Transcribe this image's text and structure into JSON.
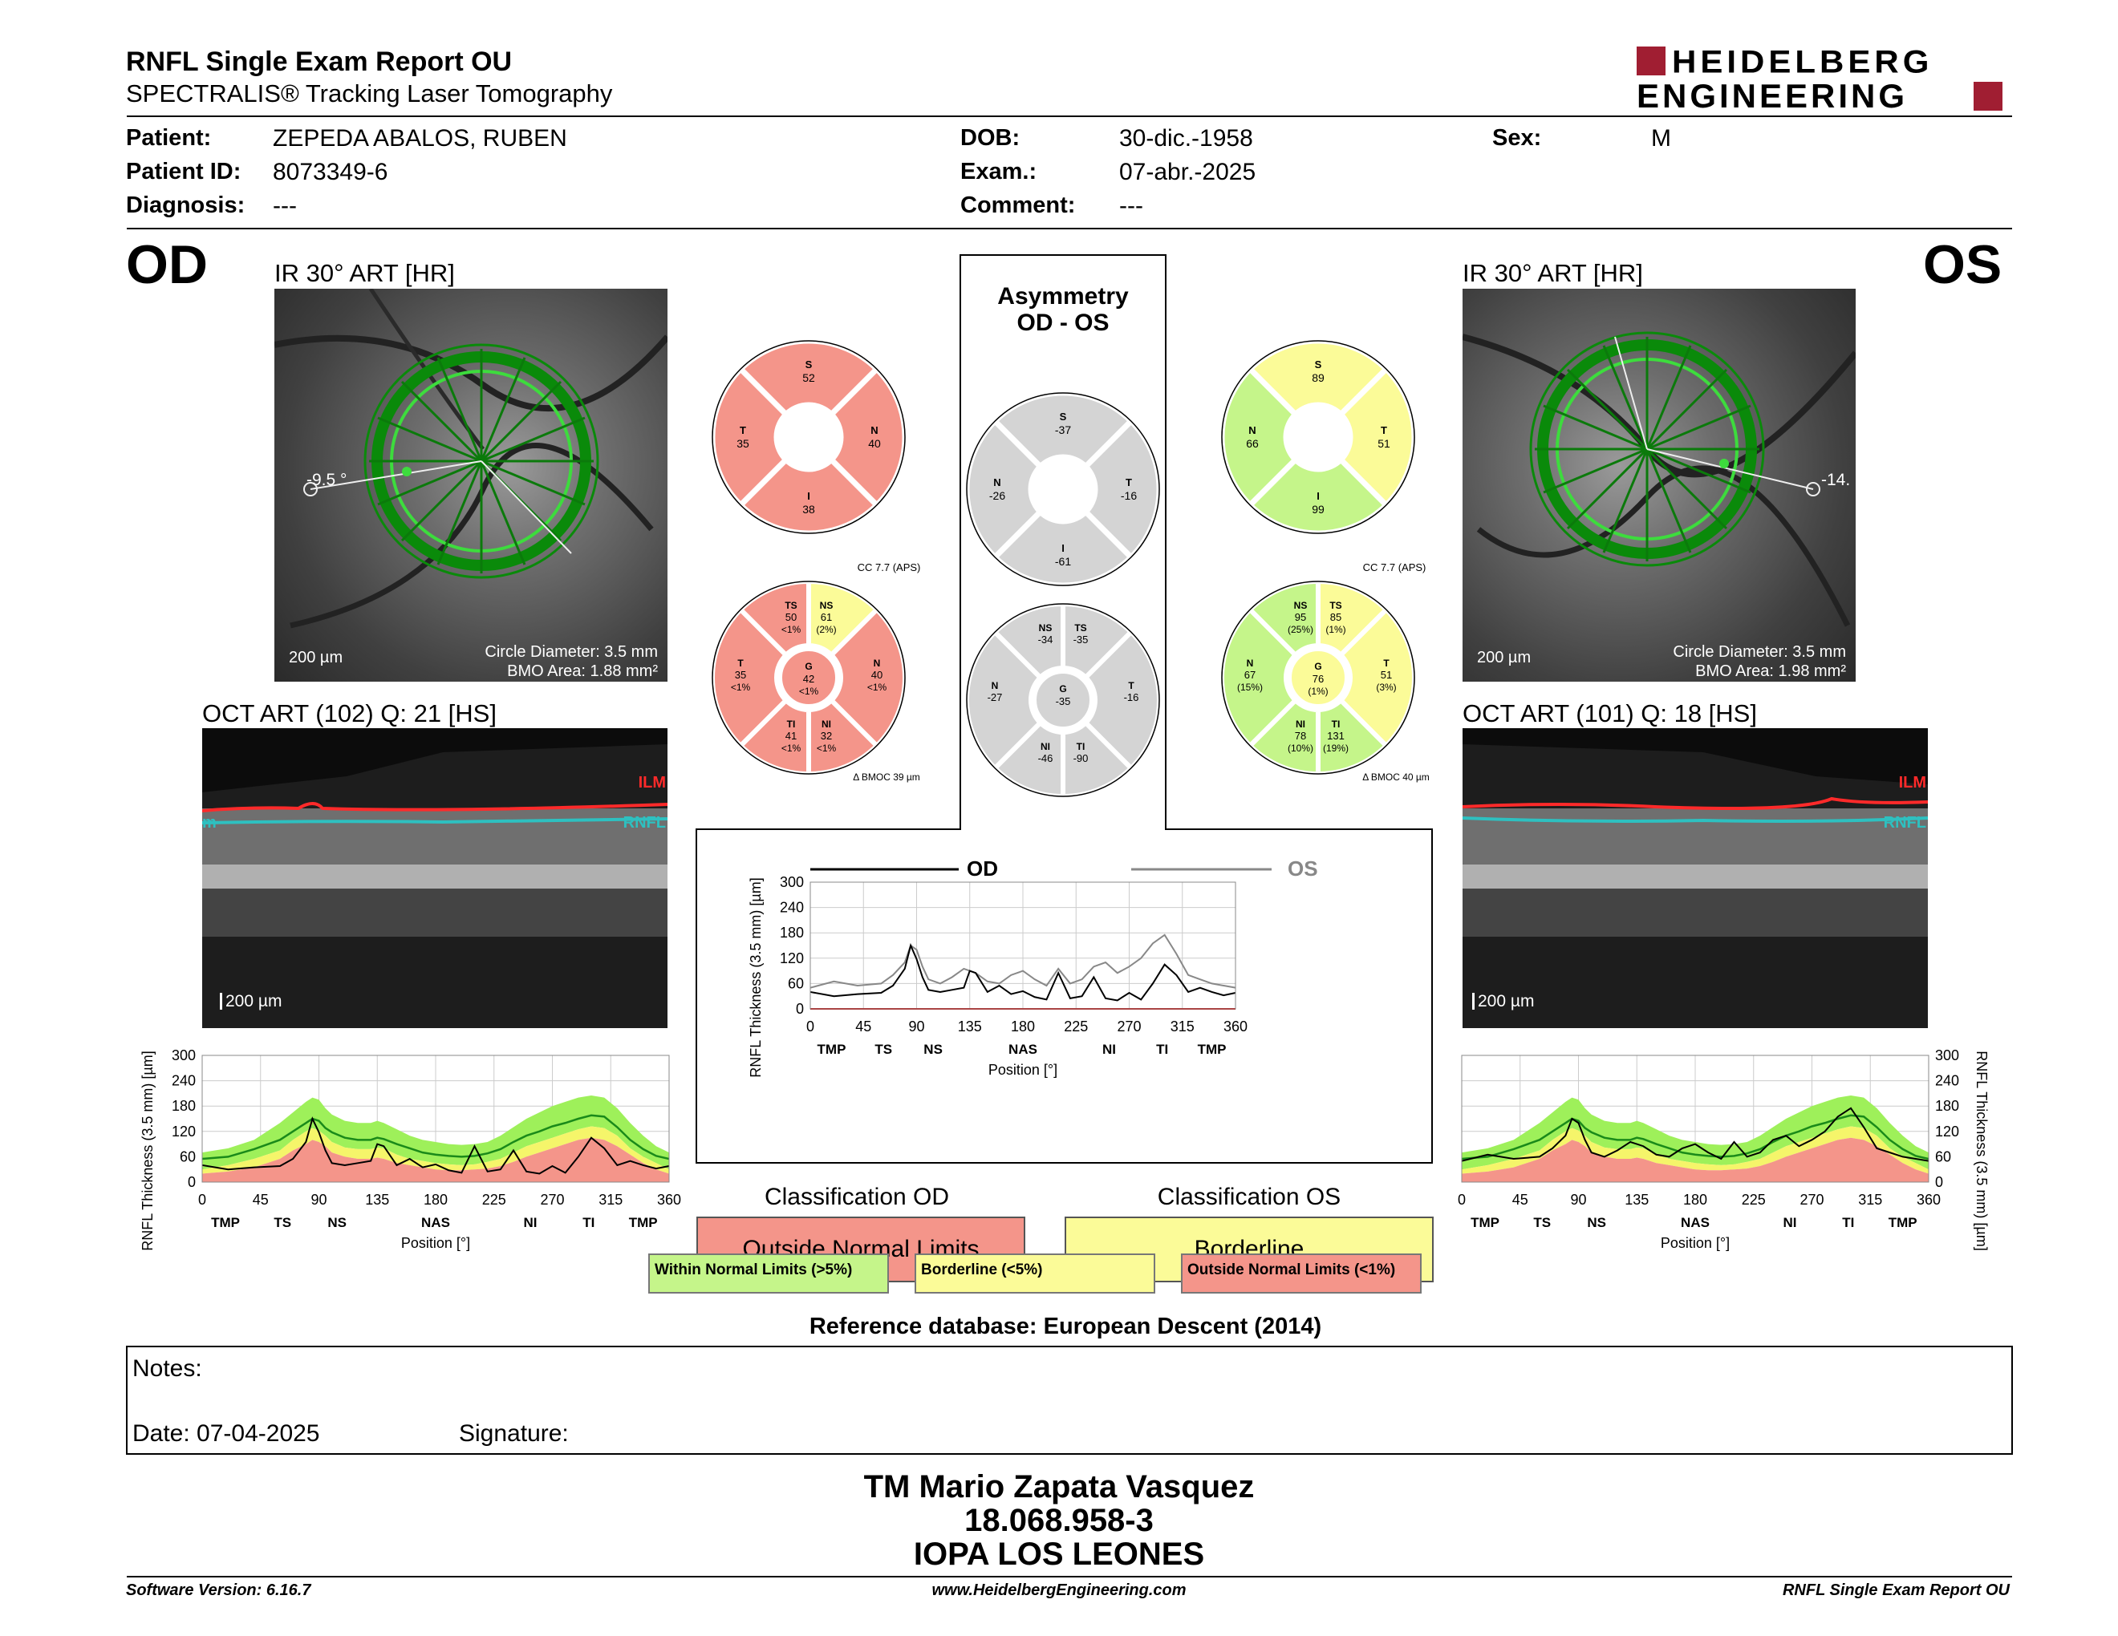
{
  "header": {
    "title": "RNFL Single Exam Report OU",
    "subtitle": "SPECTRALIS® Tracking Laser Tomography",
    "logo_line1": "HEIDELBERG",
    "logo_line2": "ENGINEERING"
  },
  "patient": {
    "name_label": "Patient:",
    "name": "ZEPEDA ABALOS, RUBEN",
    "id_label": "Patient ID:",
    "id": "8073349-6",
    "diagnosis_label": "Diagnosis:",
    "diagnosis": "---",
    "dob_label": "DOB:",
    "dob": "30-dic.-1958",
    "exam_label": "Exam.:",
    "exam": "07-abr.-2025",
    "comment_label": "Comment:",
    "comment": "---",
    "sex_label": "Sex:",
    "sex": "M"
  },
  "od": {
    "eye": "OD",
    "ir_title": "IR 30° ART [HR]",
    "angle": "-9.5 °",
    "scale": "200 µm",
    "circle_diameter": "Circle Diameter: 3.5 mm",
    "bmo_area": "BMO Area: 1.88 mm²",
    "oct_title": "OCT ART (102) Q: 21 [HS]",
    "oct_scale": "200 µm",
    "ilm": "ILM",
    "rnfl": "RNFL",
    "rnfl_cut": "m",
    "quadrants": {
      "S": "52",
      "T": "35",
      "N": "40",
      "I": "38"
    },
    "sectors": {
      "TS": [
        "50",
        "<1%"
      ],
      "NS": [
        "61",
        "(2%)"
      ],
      "T": [
        "35",
        "<1%"
      ],
      "G": [
        "42",
        "<1%"
      ],
      "N": [
        "40",
        "<1%"
      ],
      "TI": [
        "41",
        "<1%"
      ],
      "NI": [
        "32",
        "<1%"
      ]
    },
    "cc": "CC 7.7 (APS)",
    "bmoc": "BMOC 39 µm"
  },
  "os": {
    "eye": "OS",
    "ir_title": "IR 30° ART [HR]",
    "angle": "-14.",
    "scale": "200 µm",
    "circle_diameter": "Circle Diameter: 3.5 mm",
    "bmo_area": "BMO Area: 1.98 mm²",
    "oct_title": "OCT ART (101) Q: 18 [HS]",
    "oct_scale": "200 µm",
    "ilm": "ILM",
    "rnfl": "RNFL",
    "quadrants": {
      "S": "89",
      "N": "66",
      "T": "51",
      "I": "99"
    },
    "sectors": {
      "NS": [
        "95",
        "(25%)"
      ],
      "TS": [
        "85",
        "(1%)"
      ],
      "N": [
        "67",
        "(15%)"
      ],
      "G": [
        "76",
        "(1%)"
      ],
      "T": [
        "51",
        "(3%)"
      ],
      "NI": [
        "78",
        "(10%)"
      ],
      "TI": [
        "131",
        "(19%)"
      ]
    },
    "cc": "CC 7.7 (APS)",
    "bmoc": "BMOC 40 µm"
  },
  "asymmetry": {
    "title1": "Asymmetry",
    "title2": "OD - OS",
    "quadrants": {
      "S": "-37",
      "N": "-26",
      "T": "-16",
      "I": "-61"
    },
    "sectors": {
      "NS": "-34",
      "TS": "-35",
      "N": "-27",
      "G": "-35",
      "T": "-16",
      "NI": "-46",
      "TI": "-90"
    }
  },
  "labels": {
    "S": "S",
    "T": "T",
    "N": "N",
    "I": "I",
    "TS": "TS",
    "NS": "NS",
    "G": "G",
    "TI": "TI",
    "NI": "NI",
    "delta": "Δ"
  },
  "chart_data": [
    {
      "type": "line",
      "id": "od-profile",
      "ylabel": "RNFL Thickness (3.5 mm) [µm]",
      "xlabel": "Position [°]",
      "xlim": [
        0,
        360
      ],
      "ylim": [
        0,
        300
      ],
      "xticks": [
        "0",
        "45",
        "90",
        "135",
        "180",
        "225",
        "270",
        "315",
        "360"
      ],
      "yticks": [
        "0",
        "60",
        "120",
        "180",
        "240",
        "300"
      ],
      "sectors": [
        "TMP",
        "TS",
        "NS",
        "NAS",
        "NI",
        "TI",
        "TMP"
      ],
      "sector_x": [
        18,
        62,
        104,
        180,
        253,
        298,
        340
      ],
      "x": [
        0,
        20,
        40,
        60,
        70,
        80,
        85,
        90,
        95,
        100,
        110,
        120,
        130,
        135,
        140,
        150,
        160,
        170,
        180,
        190,
        200,
        210,
        220,
        230,
        240,
        250,
        260,
        270,
        280,
        290,
        300,
        310,
        320,
        330,
        340,
        350,
        360
      ],
      "series": [
        {
          "values": [
            40,
            30,
            35,
            38,
            55,
            95,
            150,
            118,
            75,
            45,
            40,
            45,
            50,
            90,
            85,
            40,
            55,
            35,
            42,
            28,
            22,
            85,
            25,
            30,
            75,
            25,
            20,
            38,
            22,
            60,
            105,
            80,
            40,
            50,
            40,
            32,
            38
          ]
        },
        {
          "values": [
            55,
            60,
            78,
            100,
            120,
            140,
            150,
            145,
            128,
            118,
            105,
            100,
            100,
            105,
            102,
            90,
            80,
            70,
            65,
            62,
            60,
            62,
            68,
            78,
            95,
            110,
            120,
            132,
            140,
            150,
            158,
            155,
            130,
            100,
            78,
            62,
            55
          ]
        },
        {
          "values": [
            20,
            25,
            35,
            55,
            75,
            90,
            100,
            95,
            85,
            70,
            60,
            55,
            55,
            58,
            55,
            45,
            40,
            35,
            30,
            28,
            28,
            30,
            32,
            38,
            48,
            60,
            70,
            80,
            90,
            100,
            105,
            100,
            85,
            65,
            45,
            30,
            20
          ]
        },
        {
          "values": [
            30,
            40,
            55,
            75,
            100,
            120,
            128,
            122,
            110,
            95,
            82,
            78,
            78,
            82,
            80,
            65,
            55,
            50,
            45,
            42,
            40,
            42,
            48,
            55,
            70,
            85,
            95,
            105,
            115,
            125,
            132,
            128,
            110,
            80,
            60,
            45,
            30
          ]
        },
        {
          "values": [
            70,
            80,
            100,
            140,
            165,
            190,
            200,
            195,
            175,
            160,
            145,
            140,
            140,
            145,
            140,
            125,
            110,
            100,
            95,
            90,
            88,
            90,
            95,
            110,
            130,
            150,
            165,
            180,
            190,
            200,
            205,
            200,
            175,
            140,
            110,
            85,
            70
          ]
        }
      ]
    },
    {
      "type": "line",
      "id": "ou-profile",
      "ylabel": "RNFL Thickness (3.5 mm) [µm]",
      "xlabel": "Position [°]",
      "xlim": [
        0,
        360
      ],
      "ylim": [
        0,
        300
      ],
      "xticks": [
        "0",
        "45",
        "90",
        "135",
        "180",
        "225",
        "270",
        "315",
        "360"
      ],
      "yticks": [
        "0",
        "60",
        "120",
        "180",
        "240",
        "300"
      ],
      "sectors": [
        "TMP",
        "TS",
        "NS",
        "NAS",
        "NI",
        "TI",
        "TMP"
      ],
      "sector_x": [
        18,
        62,
        104,
        180,
        253,
        298,
        340
      ],
      "x": [
        0,
        20,
        40,
        60,
        70,
        80,
        85,
        90,
        95,
        100,
        110,
        120,
        130,
        135,
        140,
        150,
        160,
        170,
        180,
        190,
        200,
        210,
        220,
        230,
        240,
        250,
        260,
        270,
        280,
        290,
        300,
        310,
        320,
        330,
        340,
        350,
        360
      ],
      "series": [
        {
          "name": "OD",
          "values": [
            40,
            30,
            35,
            38,
            55,
            95,
            150,
            118,
            75,
            45,
            40,
            45,
            50,
            90,
            85,
            40,
            55,
            35,
            42,
            28,
            22,
            85,
            25,
            30,
            75,
            25,
            20,
            38,
            22,
            60,
            105,
            80,
            40,
            50,
            40,
            32,
            38
          ]
        },
        {
          "name": "OS",
          "values": [
            50,
            65,
            55,
            60,
            80,
            110,
            150,
            140,
            100,
            70,
            60,
            75,
            95,
            90,
            85,
            65,
            60,
            80,
            90,
            70,
            55,
            95,
            60,
            70,
            100,
            110,
            85,
            100,
            120,
            155,
            175,
            130,
            80,
            70,
            60,
            55,
            50
          ]
        }
      ]
    },
    {
      "type": "line",
      "id": "os-profile",
      "ylabel": "RNFL Thickness (3.5 mm) [µm]",
      "xlabel": "Position [°]",
      "xlim": [
        0,
        360
      ],
      "ylim": [
        0,
        300
      ],
      "xticks": [
        "0",
        "45",
        "90",
        "135",
        "180",
        "225",
        "270",
        "315",
        "360"
      ],
      "yticks": [
        "0",
        "60",
        "120",
        "180",
        "240",
        "300"
      ],
      "sectors": [
        "TMP",
        "TS",
        "NS",
        "NAS",
        "NI",
        "TI",
        "TMP"
      ],
      "sector_x": [
        18,
        62,
        104,
        180,
        253,
        298,
        340
      ],
      "x": [
        0,
        20,
        40,
        60,
        70,
        80,
        85,
        90,
        95,
        100,
        110,
        120,
        130,
        135,
        140,
        150,
        160,
        170,
        180,
        190,
        200,
        210,
        220,
        230,
        240,
        250,
        260,
        270,
        280,
        290,
        300,
        310,
        320,
        330,
        340,
        350,
        360
      ],
      "series": [
        {
          "values": [
            50,
            65,
            55,
            60,
            80,
            110,
            150,
            140,
            100,
            70,
            60,
            75,
            95,
            90,
            85,
            65,
            60,
            80,
            90,
            70,
            55,
            95,
            60,
            70,
            100,
            110,
            85,
            100,
            120,
            155,
            175,
            130,
            80,
            70,
            60,
            55,
            50
          ]
        },
        {
          "values": [
            55,
            60,
            78,
            100,
            120,
            140,
            150,
            145,
            128,
            118,
            105,
            100,
            100,
            105,
            102,
            90,
            80,
            70,
            65,
            62,
            60,
            62,
            68,
            78,
            95,
            110,
            120,
            132,
            140,
            150,
            158,
            155,
            130,
            100,
            78,
            62,
            55
          ]
        },
        {
          "values": [
            20,
            25,
            35,
            55,
            75,
            90,
            100,
            95,
            85,
            70,
            60,
            55,
            55,
            58,
            55,
            45,
            40,
            35,
            30,
            28,
            28,
            30,
            32,
            38,
            48,
            60,
            70,
            80,
            90,
            100,
            105,
            100,
            85,
            65,
            45,
            30,
            20
          ]
        },
        {
          "values": [
            30,
            40,
            55,
            75,
            100,
            120,
            128,
            122,
            110,
            95,
            82,
            78,
            78,
            82,
            80,
            65,
            55,
            50,
            45,
            42,
            40,
            42,
            48,
            55,
            70,
            85,
            95,
            105,
            115,
            125,
            132,
            128,
            110,
            80,
            60,
            45,
            30
          ]
        },
        {
          "values": [
            70,
            80,
            100,
            140,
            165,
            190,
            200,
            195,
            175,
            160,
            145,
            140,
            140,
            145,
            140,
            125,
            110,
            100,
            95,
            90,
            88,
            90,
            95,
            110,
            130,
            150,
            165,
            180,
            190,
            200,
            205,
            200,
            175,
            140,
            110,
            85,
            70
          ]
        }
      ]
    }
  ],
  "classification": {
    "od_title": "Classification OD",
    "od_result": "Outside Normal Limits",
    "os_title": "Classification OS",
    "os_result": "Borderline",
    "legend": [
      "Within Normal Limits (>5%)",
      "Borderline (<5%)",
      "Outside Normal Limits (<1%)"
    ]
  },
  "colors": {
    "red": "#f4958a",
    "yellow": "#fbfb98",
    "green": "#c5f58a",
    "gray": "#d4d4d4",
    "brand": "#a01e32"
  },
  "reference_db": "Reference database: European Descent (2014)",
  "notes": {
    "label": "Notes:",
    "date": "Date: 07-04-2025",
    "signature": "Signature:"
  },
  "signer": {
    "name": "TM Mario Zapata Vasquez",
    "id": "18.068.958-3",
    "place": "IOPA LOS LEONES"
  },
  "footer": {
    "version": "Software Version: 6.16.7",
    "url": "www.HeidelbergEngineering.com",
    "report": "RNFL Single Exam Report OU"
  }
}
